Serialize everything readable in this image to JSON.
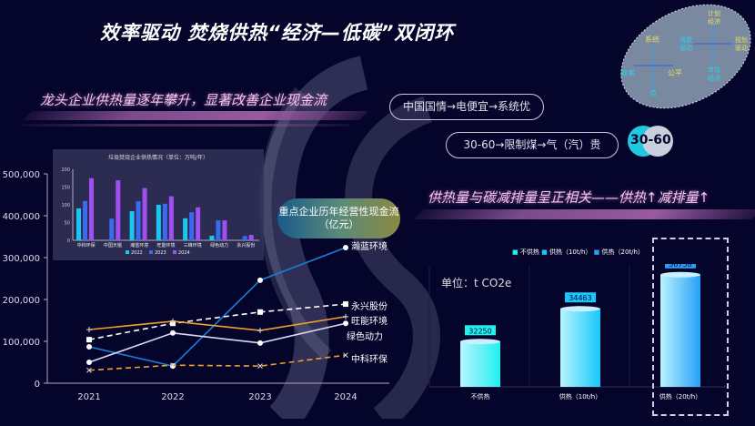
{
  "title": "效率驱动  焚烧供热“经济—低碳”双闭环",
  "left_heading": "龙头企业供热量逐年攀升，显著改善企业现金流",
  "pills": [
    "中国国情→电便宜→系统优",
    "30-60→限制煤→气（汽）贵"
  ],
  "badge": "30-60",
  "right_heading": "供热量与碳减排量呈正相关——供热↑减排量↑",
  "diagram": {
    "left": {
      "top": "系统",
      "left": "效率",
      "right": "公平",
      "bottom": "点"
    },
    "right": {
      "top": "计划经济",
      "left": "消费驱动",
      "right": "规划驱动",
      "bottom": "市场经济"
    }
  },
  "colors": {
    "bg": "#05052c",
    "accent": "#1a7fd4",
    "orange": "#f0a030"
  },
  "chart_data": [
    {
      "type": "line",
      "title": "重点企业历年经营性现金流（亿元）",
      "x": [
        "2021",
        "2022",
        "2023",
        "2024"
      ],
      "ylim": [
        0,
        500000
      ],
      "yticks": [
        "0",
        "100,000",
        "200,000",
        "300,000",
        "400,000",
        "500,000"
      ],
      "series": [
        {
          "name": "瀚蓝环境",
          "values": [
            87000,
            41000,
            246000,
            324000
          ],
          "color": "#1a7fd4",
          "dash": false,
          "marker": "circle"
        },
        {
          "name": "永兴股份",
          "values": [
            104000,
            143000,
            170000,
            189000
          ],
          "color": "#ffffff",
          "dash": true,
          "marker": "square"
        },
        {
          "name": "旺能环境",
          "values": [
            128000,
            148000,
            126000,
            159000
          ],
          "color": "#f0a030",
          "dash": false,
          "marker": "plus"
        },
        {
          "name": "绿色动力",
          "values": [
            50000,
            120000,
            96000,
            143000
          ],
          "color": "#d8dcf0",
          "dash": false,
          "marker": "circle"
        },
        {
          "name": "中科环保",
          "values": [
            31000,
            43000,
            41000,
            67000
          ],
          "color": "#f0a030",
          "dash": true,
          "marker": "x"
        }
      ]
    },
    {
      "type": "bar",
      "title": "垃圾焚烧企业供热情况（单位：万吨/年）",
      "categories": [
        "中科环保",
        "中国天楹",
        "瀚蓝环境",
        "旺能环境",
        "三峰环境",
        "绿色动力",
        "永兴股份"
      ],
      "ylim": [
        0,
        200
      ],
      "yticks": [
        "0",
        "50",
        "100",
        "150",
        "200"
      ],
      "series": [
        {
          "name": "2022",
          "values": [
            90,
            null,
            82,
            100,
            62,
            13,
            null
          ],
          "color": "#19c8f0"
        },
        {
          "name": "2023",
          "values": [
            111,
            61,
            110,
            103,
            79,
            56,
            12
          ],
          "color": "#3a6af0"
        },
        {
          "name": "2024",
          "values": [
            175,
            169,
            147,
            124,
            93,
            56,
            15
          ],
          "color": "#a050f0"
        }
      ]
    },
    {
      "type": "bar",
      "unit": "单位：t CO2e",
      "categories": [
        "不供热",
        "供热（10t/h）",
        "供热（20t/h）"
      ],
      "values": [
        32250,
        34463,
        36758
      ],
      "legend": [
        "不供热",
        "供热（10t/h）",
        "供热（20t/h）"
      ],
      "colors": [
        "#20f0f0",
        "#18c8f8",
        "#28a0f8"
      ]
    }
  ]
}
